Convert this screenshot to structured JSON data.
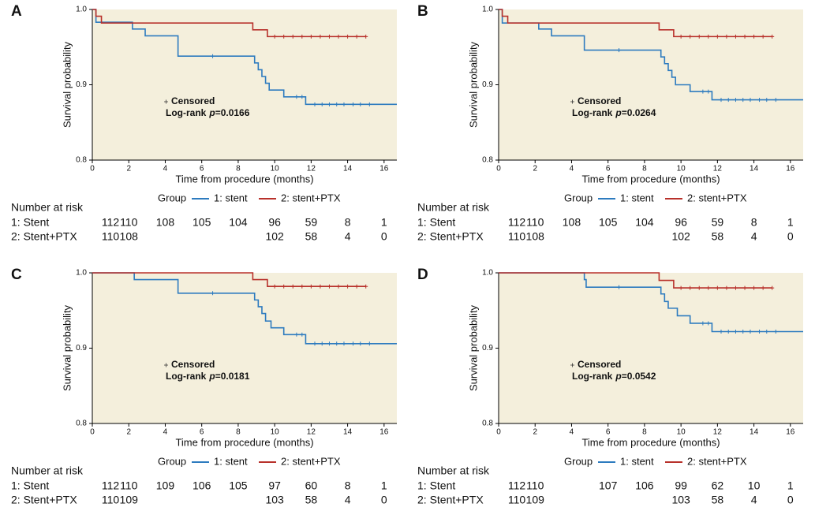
{
  "chart_data": [
    {
      "type": "line",
      "step": true,
      "panel_label": "A",
      "ylabel": "Survival probability",
      "xlabel": "Time from procedure (months)",
      "legend_title": "Group",
      "censor_label": "Censored",
      "logrank": [
        "Log-rank",
        "p",
        "=0.0166"
      ],
      "xlim": [
        0,
        16.7
      ],
      "ylim": [
        0.8,
        1.0
      ],
      "xticks": [
        0,
        2,
        4,
        6,
        8,
        10,
        12,
        14,
        16
      ],
      "yticks": [
        0.8,
        0.9,
        {
          "value": 1.0,
          "label": "1.0"
        }
      ],
      "series": [
        {
          "name": "1: stent",
          "color": "#2d7bbf",
          "x": [
            0,
            0.2,
            2.2,
            2.9,
            4.7,
            8.9,
            9.1,
            9.3,
            9.5,
            9.7,
            10.5,
            11.7,
            16.7
          ],
          "values": [
            1.0,
            0.983,
            0.974,
            0.965,
            0.938,
            0.929,
            0.92,
            0.911,
            0.902,
            0.893,
            0.884,
            0.874,
            0.874
          ],
          "censored_x": [
            6.6,
            11.2,
            11.5,
            12.2,
            12.6,
            13,
            13.4,
            13.8,
            14.3,
            14.7,
            15.2
          ]
        },
        {
          "name": "2: stent+PTX",
          "color": "#b8312b",
          "x": [
            0,
            0.2,
            0.5,
            8.8,
            9.6,
            15
          ],
          "values": [
            1.0,
            0.991,
            0.982,
            0.973,
            0.964,
            0.964
          ],
          "censored_x": [
            10,
            10.5,
            11,
            11.5,
            12,
            12.5,
            13,
            13.5,
            14,
            14.5,
            15
          ]
        }
      ],
      "risk_table": {
        "title": "Number at risk",
        "rows": [
          {
            "label": "1: Stent",
            "values": [
              112,
              110,
              108,
              105,
              104,
              96,
              59,
              8,
              1
            ]
          },
          {
            "label": "2: Stent+PTX",
            "values": [
              110,
              108,
              null,
              null,
              null,
              102,
              58,
              4,
              0
            ]
          }
        ]
      }
    },
    {
      "type": "line",
      "step": true,
      "panel_label": "B",
      "ylabel": "Survival probability",
      "xlabel": "Time from procedure (months)",
      "legend_title": "Group",
      "censor_label": "Censored",
      "logrank": [
        "Log-rank",
        "p",
        "=0.0264"
      ],
      "xlim": [
        0,
        16.7
      ],
      "ylim": [
        0.8,
        1.0
      ],
      "xticks": [
        0,
        2,
        4,
        6,
        8,
        10,
        12,
        14,
        16
      ],
      "yticks": [
        0.8,
        0.9,
        {
          "value": 1.0,
          "label": "1.0"
        }
      ],
      "series": [
        {
          "name": "1: stent",
          "color": "#2d7bbf",
          "x": [
            0,
            0.2,
            2.2,
            2.9,
            4.7,
            8.9,
            9.1,
            9.3,
            9.5,
            9.7,
            10.5,
            11.7,
            16.7
          ],
          "values": [
            1.0,
            0.982,
            0.974,
            0.965,
            0.946,
            0.937,
            0.928,
            0.919,
            0.91,
            0.9,
            0.891,
            0.88,
            0.88
          ],
          "censored_x": [
            6.6,
            11.2,
            11.5,
            12.2,
            12.6,
            13,
            13.4,
            13.8,
            14.3,
            14.7,
            15.2
          ]
        },
        {
          "name": "2: stent+PTX",
          "color": "#b8312b",
          "x": [
            0,
            0.2,
            0.5,
            8.8,
            9.6,
            15
          ],
          "values": [
            1.0,
            0.991,
            0.982,
            0.973,
            0.964,
            0.964
          ],
          "censored_x": [
            10,
            10.5,
            11,
            11.5,
            12,
            12.5,
            13,
            13.5,
            14,
            14.5,
            15
          ]
        }
      ],
      "risk_table": {
        "title": "Number at risk",
        "rows": [
          {
            "label": "1: Stent",
            "values": [
              112,
              110,
              108,
              105,
              104,
              96,
              59,
              8,
              1
            ]
          },
          {
            "label": "2: Stent+PTX",
            "values": [
              110,
              108,
              null,
              null,
              null,
              102,
              58,
              4,
              0
            ]
          }
        ]
      }
    },
    {
      "type": "line",
      "step": true,
      "panel_label": "C",
      "ylabel": "Survival probability",
      "xlabel": "Time from procedure (months)",
      "legend_title": "Group",
      "censor_label": "Censored",
      "logrank": [
        "Log-rank",
        "p",
        "=0.0181"
      ],
      "xlim": [
        0,
        16.7
      ],
      "ylim": [
        0.8,
        1.0
      ],
      "xticks": [
        0,
        2,
        4,
        6,
        8,
        10,
        12,
        14,
        16
      ],
      "yticks": [
        0.8,
        0.9,
        {
          "value": 1.0,
          "label": "1.0"
        }
      ],
      "series": [
        {
          "name": "1: stent",
          "color": "#2d7bbf",
          "x": [
            0,
            2.3,
            4.7,
            8.9,
            9.1,
            9.3,
            9.5,
            9.8,
            10.5,
            11.7,
            16.7
          ],
          "values": [
            1.0,
            0.991,
            0.973,
            0.964,
            0.955,
            0.946,
            0.936,
            0.927,
            0.918,
            0.906,
            0.906
          ],
          "censored_x": [
            6.6,
            11.2,
            11.5,
            12.2,
            12.6,
            13,
            13.4,
            13.8,
            14.3,
            14.7,
            15.2
          ]
        },
        {
          "name": "2: stent+PTX",
          "color": "#b8312b",
          "x": [
            0,
            8.8,
            9.6,
            15
          ],
          "values": [
            1.0,
            0.991,
            0.982,
            0.982
          ],
          "censored_x": [
            10,
            10.5,
            11,
            11.5,
            12,
            12.5,
            13,
            13.5,
            14,
            14.5,
            15
          ]
        }
      ],
      "risk_table": {
        "title": "Number at risk",
        "rows": [
          {
            "label": "1: Stent",
            "values": [
              112,
              110,
              109,
              106,
              105,
              97,
              60,
              8,
              1
            ]
          },
          {
            "label": "2: Stent+PTX",
            "values": [
              110,
              109,
              null,
              null,
              null,
              103,
              58,
              4,
              0
            ]
          }
        ]
      }
    },
    {
      "type": "line",
      "step": true,
      "panel_label": "D",
      "ylabel": "Survival probability",
      "xlabel": "Time from procedure (months)",
      "legend_title": "Group",
      "censor_label": "Censored",
      "logrank": [
        "Log-rank",
        "p",
        "=0.0542"
      ],
      "xlim": [
        0,
        16.7
      ],
      "ylim": [
        0.8,
        1.0
      ],
      "xticks": [
        0,
        2,
        4,
        6,
        8,
        10,
        12,
        14,
        16
      ],
      "yticks": [
        0.8,
        0.9,
        {
          "value": 1.0,
          "label": "1.0"
        }
      ],
      "series": [
        {
          "name": "1: stent",
          "color": "#2d7bbf",
          "x": [
            0,
            4.7,
            4.8,
            8.9,
            9.1,
            9.3,
            9.8,
            10.5,
            11.7,
            16.7
          ],
          "values": [
            1.0,
            0.991,
            0.981,
            0.972,
            0.962,
            0.953,
            0.943,
            0.933,
            0.922,
            0.922
          ],
          "censored_x": [
            6.6,
            11.2,
            11.5,
            12.2,
            12.6,
            13,
            13.4,
            13.8,
            14.3,
            14.7,
            15.2
          ]
        },
        {
          "name": "2: stent+PTX",
          "color": "#b8312b",
          "x": [
            0,
            8.8,
            9.6,
            15
          ],
          "values": [
            1.0,
            0.99,
            0.98,
            0.98
          ],
          "censored_x": [
            10,
            10.5,
            11,
            11.5,
            12,
            12.5,
            13,
            13.5,
            14,
            14.5,
            15
          ]
        }
      ],
      "risk_table": {
        "title": "Number at risk",
        "rows": [
          {
            "label": "1: Stent",
            "values": [
              112,
              110,
              null,
              107,
              106,
              99,
              62,
              10,
              1
            ]
          },
          {
            "label": "2: Stent+PTX",
            "values": [
              110,
              109,
              null,
              null,
              null,
              103,
              58,
              4,
              0
            ]
          }
        ]
      }
    }
  ]
}
